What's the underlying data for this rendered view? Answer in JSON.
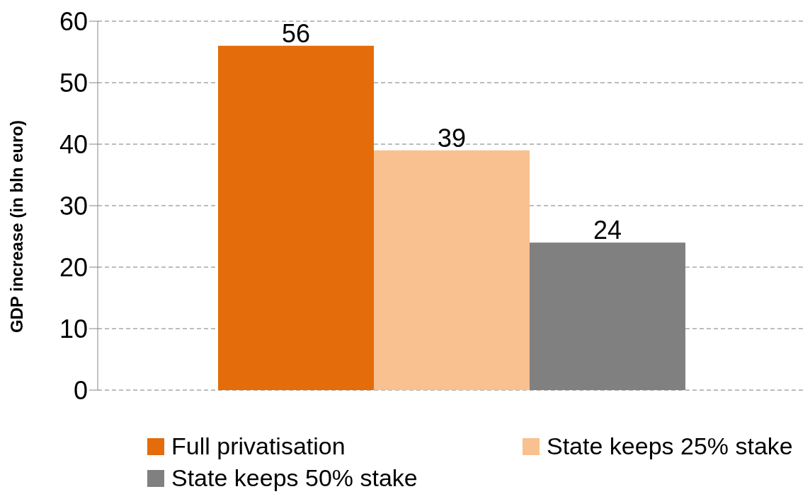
{
  "chart_data": {
    "type": "bar",
    "ylabel": "GDP increase (in bln euro)",
    "categories": [
      null
    ],
    "series": [
      {
        "name": "Full privatisation",
        "color": "#e46c0a",
        "values": [
          56
        ]
      },
      {
        "name": "State keeps 25% stake",
        "color": "#f9c090",
        "values": [
          39
        ]
      },
      {
        "name": "State keeps 50% stake",
        "color": "#808080",
        "values": [
          24
        ]
      }
    ],
    "ylim": [
      0,
      60
    ],
    "yticks": [
      0,
      10,
      20,
      30,
      40,
      50,
      60
    ],
    "grid": "y",
    "legend": "bottom",
    "data_labels": true
  }
}
